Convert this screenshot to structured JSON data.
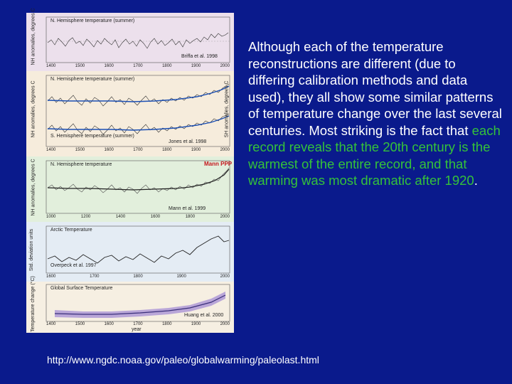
{
  "slide": {
    "text_parts": [
      {
        "text": "Although each of the temperature reconstructions are different (due to differing calibration methods and data used), they all show some similar patterns of temperature change over the last several centuries. Most striking is the fact that ",
        "highlight": false
      },
      {
        "text": "each record reveals that the 20th century is the warmest of the entire record, and that warming was most dramatic after 1920",
        "highlight": true
      },
      {
        "text": ".",
        "highlight": false
      }
    ],
    "url": "http://www.ngdc.noaa.gov/paleo/globalwarming/paleolast.html",
    "colors": {
      "background": "#0a1a8c",
      "text": "#ffffff",
      "highlight": "#34c23a"
    }
  },
  "figure": {
    "panels": [
      {
        "title": "N. Hemisphere temperature (summer)",
        "credit": "Briffa et al. 1998",
        "ylabel": "NH anomalies, degrees C",
        "xticks": [
          "1400",
          "1500",
          "1600",
          "1700",
          "1800",
          "1900",
          "2000"
        ],
        "background": "#ece0ec"
      },
      {
        "title": "N. Hemisphere temperature (summer)",
        "subtitle": "S. Hemisphere temperature (summer)",
        "credit": "Jones et al. 1998",
        "ylabel": "NH anomalies, degrees C",
        "ylabel_right": "SH anomalies, degrees C",
        "xticks": [
          "1400",
          "1500",
          "1600",
          "1700",
          "1800",
          "1900",
          "2000"
        ],
        "background": "#f6ecdc"
      },
      {
        "title": "N. Hemisphere temperature",
        "credit": "Mann et al. 1999",
        "logo": "Mann PPP",
        "ylabel": "NH anomalies, degrees C",
        "xticks": [
          "1000",
          "1200",
          "1400",
          "1600",
          "1800",
          "2000"
        ],
        "background": "#e2efdc"
      },
      {
        "title": "Arctic Temperature",
        "credit": "Overpeck et al. 1997",
        "ylabel": "Std. deviation units",
        "xticks": [
          "1600",
          "1700",
          "1800",
          "1900",
          "2000"
        ],
        "background": "#e4ecf4"
      },
      {
        "title": "Global Surface Temperature",
        "credit": "Huang et al. 2000",
        "ylabel": "Temperature change (°C)",
        "xlabel": "year",
        "xticks": [
          "1400",
          "1500",
          "1600",
          "1700",
          "1800",
          "1900",
          "2000"
        ],
        "background": "#f6efe2"
      }
    ]
  }
}
